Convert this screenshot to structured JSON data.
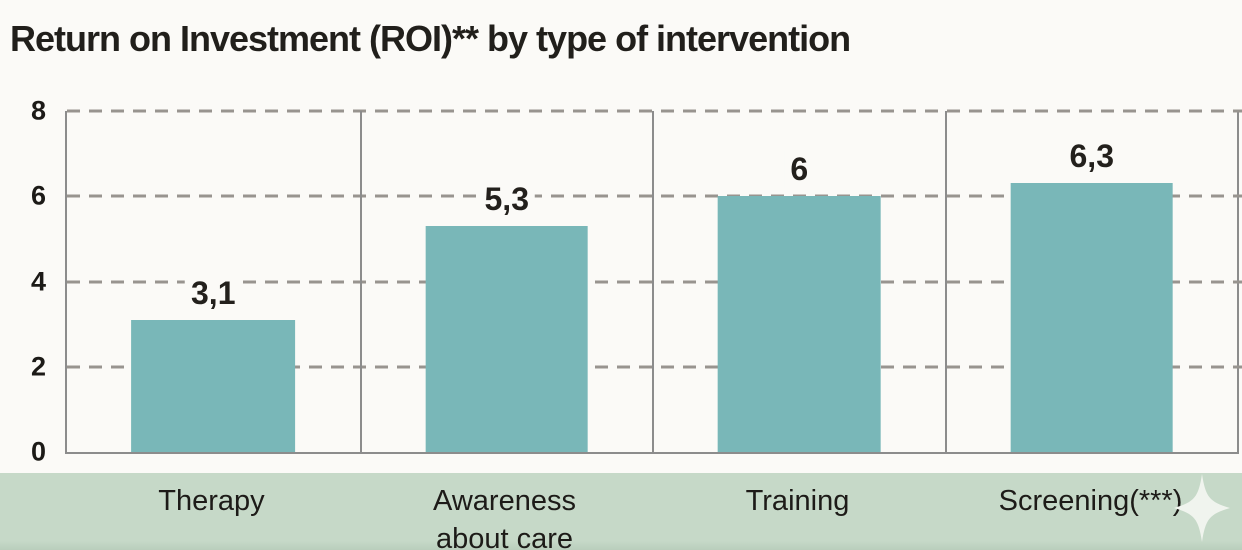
{
  "title": "Return on Investment (ROI)** by type of intervention",
  "chart_data": {
    "type": "bar",
    "title": "Return on Investment (ROI)** by type of intervention",
    "categories": [
      "Therapy",
      "Awareness about care",
      "Training",
      "Screening(***)"
    ],
    "values": [
      3.1,
      5.3,
      6,
      6.3
    ],
    "value_labels": [
      "3,1",
      "5,3",
      "6",
      "6,3"
    ],
    "xlabel": "",
    "ylabel": "",
    "ylim": [
      0,
      8
    ],
    "yticks": [
      8,
      6,
      4,
      2,
      0
    ],
    "ytick_labels": [
      "8",
      "6",
      "4",
      "2",
      "0"
    ],
    "grid": "horizontal-dashed",
    "legend": "none",
    "panel_separators": true,
    "decimal_separator": ",",
    "bar_color": "#79b7b8"
  },
  "colors": {
    "background": "#fbfaf7",
    "bar": "#79b7b8",
    "grid": "#98948f",
    "axis": "#8c8c8c",
    "title_text": "#211f1b",
    "tick_text": "#1c1a17",
    "category_band": "#c6d9c8",
    "sparkle": "#f0f4ee"
  },
  "decorations": {
    "sparkle_icon": "four-pointed-star"
  }
}
